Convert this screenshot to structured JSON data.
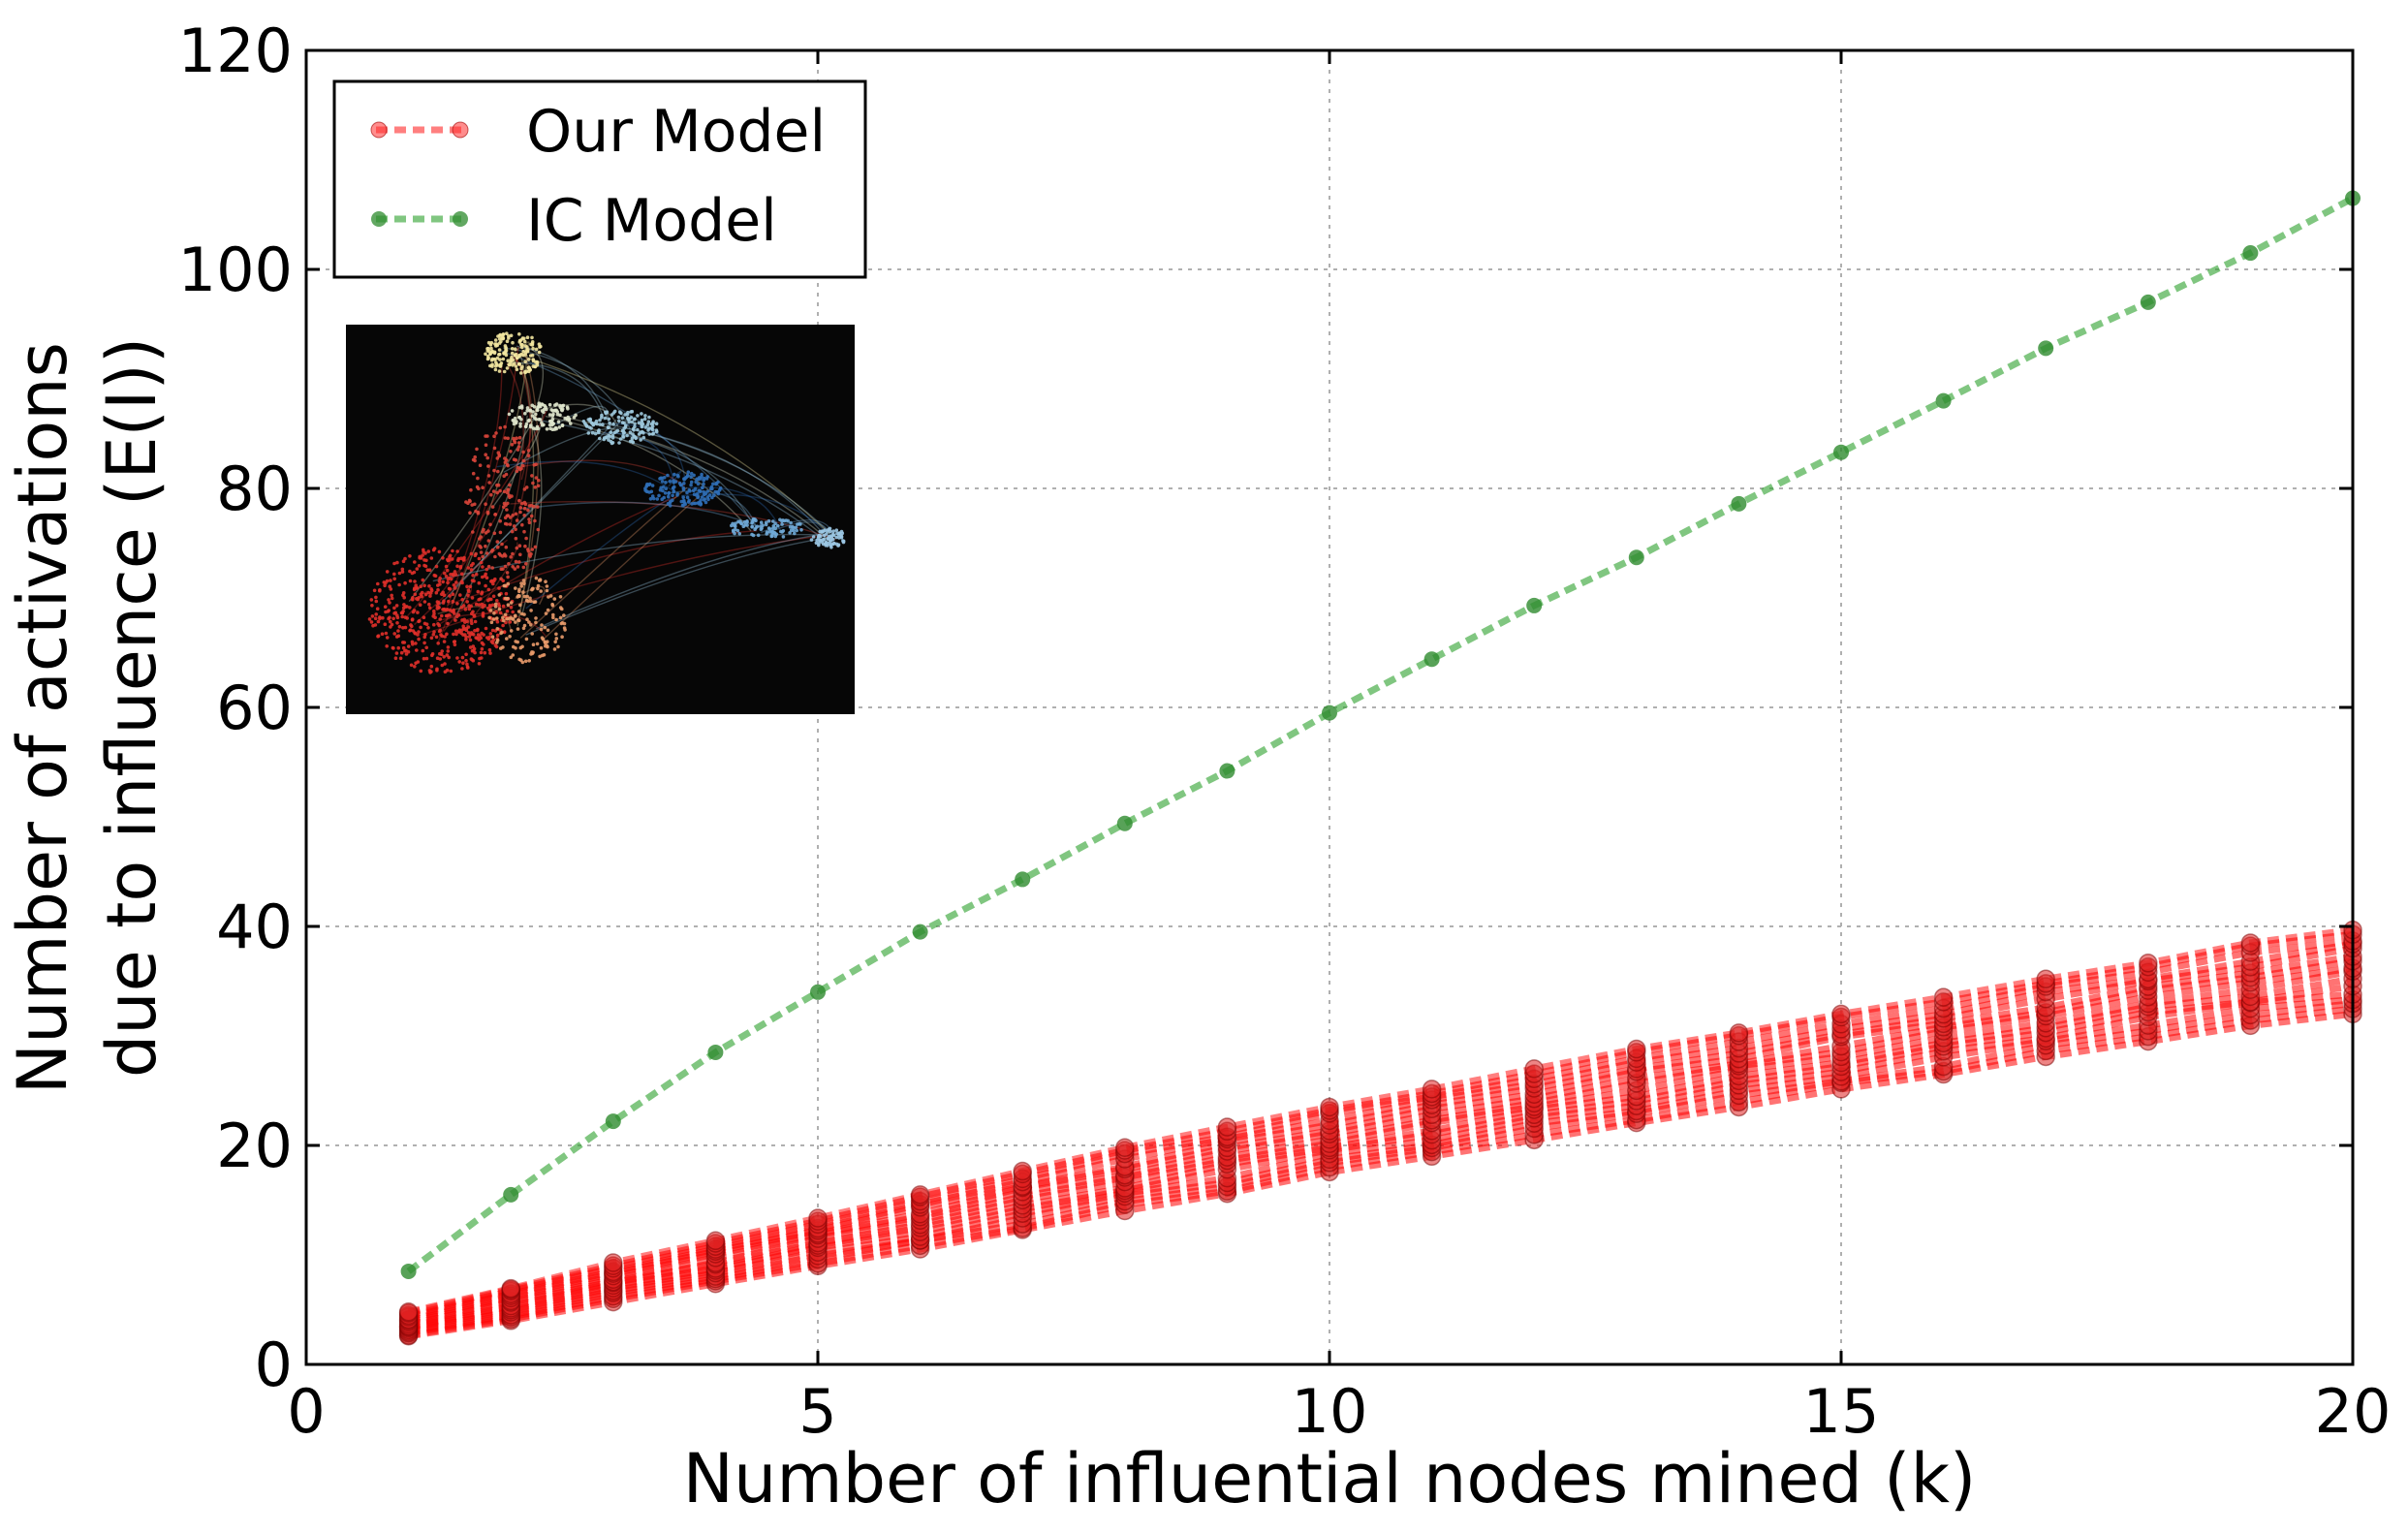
{
  "chart_data": {
    "type": "line",
    "xlabel": "Number of influential nodes mined (k)",
    "ylabel": [
      "Number of activations",
      "due to influence (E(I))"
    ],
    "xlim": [
      0,
      20
    ],
    "ylim": [
      0,
      120
    ],
    "xticks": [
      "0",
      "5",
      "10",
      "15",
      "20"
    ],
    "yticks": [
      "0",
      "20",
      "40",
      "60",
      "80",
      "100",
      "120"
    ],
    "grid": true,
    "legend_position": "top-left",
    "inset": "network-graph-visualization",
    "series": [
      {
        "name": "IC Model",
        "color": "#2ca02c",
        "style": "dotted-markers",
        "x": [
          1,
          2,
          3,
          4,
          5,
          6,
          7,
          8,
          9,
          10,
          11,
          12,
          13,
          14,
          15,
          16,
          17,
          18,
          19,
          20
        ],
        "values": [
          8.5,
          15.5,
          22.2,
          28.5,
          34.0,
          39.5,
          44.3,
          49.4,
          54.2,
          59.5,
          64.4,
          69.3,
          73.7,
          78.6,
          83.3,
          88.0,
          92.8,
          97.0,
          101.5,
          106.5
        ]
      },
      {
        "name": "Our Model",
        "color": "#ff0000",
        "style": "dotted-markers",
        "x": [
          1,
          2,
          3,
          4,
          5,
          6,
          7,
          8,
          9,
          10,
          11,
          12,
          13,
          14,
          15,
          16,
          17,
          18,
          19,
          20
        ],
        "values": [
          3.5,
          5.6,
          7.5,
          9.5,
          11.6,
          13.3,
          15.2,
          17.0,
          18.7,
          20.5,
          22.0,
          23.8,
          25.2,
          27.0,
          28.4,
          30.0,
          31.3,
          33.0,
          34.3,
          36.0
        ],
        "spread_low": [
          2.5,
          4.0,
          5.7,
          7.3,
          9.0,
          10.5,
          12.3,
          14.0,
          15.6,
          17.5,
          19.0,
          20.5,
          22.0,
          23.5,
          25.0,
          26.5,
          28.0,
          29.5,
          30.8,
          32.0
        ],
        "spread_high": [
          4.8,
          7.0,
          9.3,
          11.3,
          13.5,
          15.5,
          17.8,
          19.8,
          21.8,
          23.5,
          25.2,
          27.0,
          28.8,
          30.5,
          32.0,
          33.6,
          35.2,
          36.8,
          38.5,
          39.8
        ]
      }
    ]
  }
}
